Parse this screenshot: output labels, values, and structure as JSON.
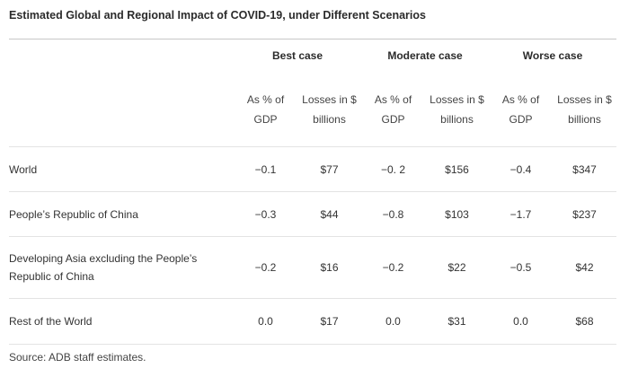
{
  "title": "Estimated Global and Regional Impact of COVID-19, under Different Scenarios",
  "scenarios": [
    "Best case",
    "Moderate case",
    "Worse case"
  ],
  "subheaders": {
    "pct_line1": "As % of",
    "pct_line2": "GDP",
    "loss_line1": "Losses in $",
    "loss_line2": "billions"
  },
  "rows": [
    {
      "region_line1": "World",
      "region_line2": "",
      "best_pct": "−0.1",
      "best_loss": "$77",
      "moderate_pct": "−0. 2",
      "moderate_loss": "$156",
      "worse_pct": "−0.4",
      "worse_loss": "$347"
    },
    {
      "region_line1": "People’s Republic of China",
      "region_line2": "",
      "best_pct": "−0.3",
      "best_loss": "$44",
      "moderate_pct": "−0.8",
      "moderate_loss": "$103",
      "worse_pct": "−1.7",
      "worse_loss": "$237"
    },
    {
      "region_line1": "Developing Asia excluding the People’s",
      "region_line2": "Republic of China",
      "best_pct": "−0.2",
      "best_loss": "$16",
      "moderate_pct": "−0.2",
      "moderate_loss": "$22",
      "worse_pct": "−0.5",
      "worse_loss": "$42"
    },
    {
      "region_line1": "Rest of the World",
      "region_line2": "",
      "best_pct": "0.0",
      "best_loss": "$17",
      "moderate_pct": "0.0",
      "moderate_loss": "$31",
      "worse_pct": "0.0",
      "worse_loss": "$68"
    }
  ],
  "source": "Source: ADB staff estimates."
}
